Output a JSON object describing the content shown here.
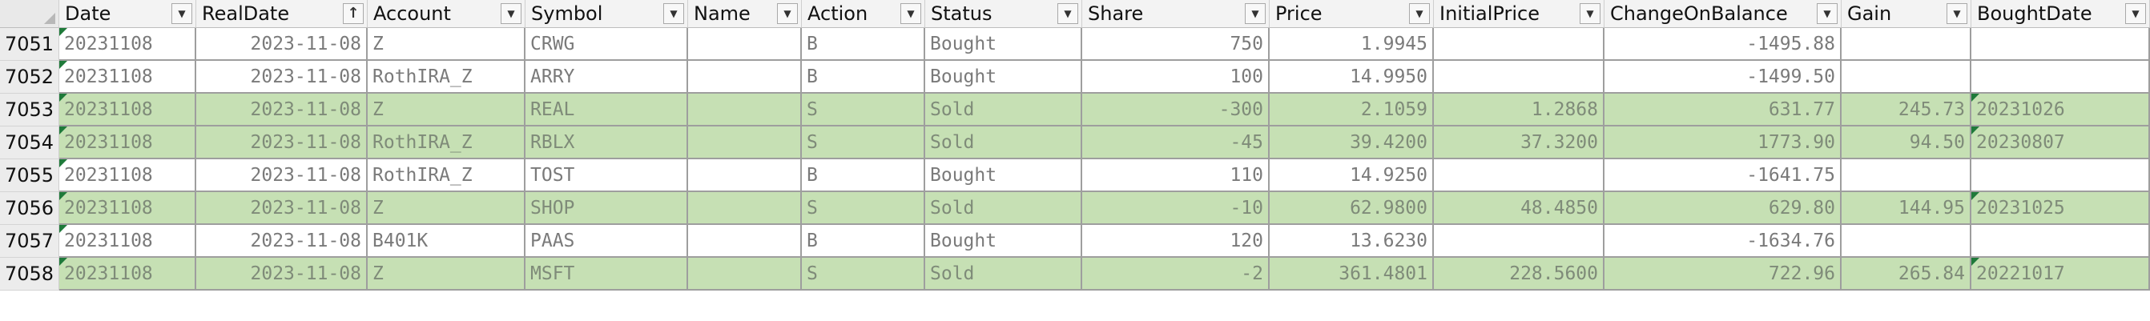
{
  "columns": [
    {
      "label": "Date",
      "align": "left"
    },
    {
      "label": "RealDate",
      "align": "right",
      "sorted": true
    },
    {
      "label": "Account",
      "align": "left"
    },
    {
      "label": "Symbol",
      "align": "left"
    },
    {
      "label": "Name",
      "align": "left"
    },
    {
      "label": "Action",
      "align": "left"
    },
    {
      "label": "Status",
      "align": "left"
    },
    {
      "label": "Share",
      "align": "right"
    },
    {
      "label": "Price",
      "align": "right"
    },
    {
      "label": "InitialPrice",
      "align": "right"
    },
    {
      "label": "ChangeOnBalance",
      "align": "right"
    },
    {
      "label": "Gain",
      "align": "right"
    },
    {
      "label": "BoughtDate",
      "align": "left"
    }
  ],
  "rows": [
    {
      "num": "7051",
      "sold": false,
      "cells": [
        "20231108",
        "2023-11-08",
        "Z",
        "CRWG",
        "",
        "B",
        "Bought",
        "750",
        "1.9945",
        "",
        "-1495.88",
        "",
        ""
      ],
      "flags": [
        true,
        false,
        false,
        false,
        false,
        false,
        false,
        false,
        false,
        false,
        false,
        false,
        false
      ]
    },
    {
      "num": "7052",
      "sold": false,
      "cells": [
        "20231108",
        "2023-11-08",
        "RothIRA_Z",
        "ARRY",
        "",
        "B",
        "Bought",
        "100",
        "14.9950",
        "",
        "-1499.50",
        "",
        ""
      ],
      "flags": [
        true,
        false,
        false,
        false,
        false,
        false,
        false,
        false,
        false,
        false,
        false,
        false,
        false
      ]
    },
    {
      "num": "7053",
      "sold": true,
      "cells": [
        "20231108",
        "2023-11-08",
        "Z",
        "REAL",
        "",
        "S",
        "Sold",
        "-300",
        "2.1059",
        "1.2868",
        "631.77",
        "245.73",
        "20231026"
      ],
      "flags": [
        true,
        false,
        false,
        false,
        false,
        false,
        false,
        false,
        false,
        false,
        false,
        false,
        true
      ]
    },
    {
      "num": "7054",
      "sold": true,
      "cells": [
        "20231108",
        "2023-11-08",
        "RothIRA_Z",
        "RBLX",
        "",
        "S",
        "Sold",
        "-45",
        "39.4200",
        "37.3200",
        "1773.90",
        "94.50",
        "20230807"
      ],
      "flags": [
        true,
        false,
        false,
        false,
        false,
        false,
        false,
        false,
        false,
        false,
        false,
        false,
        true
      ]
    },
    {
      "num": "7055",
      "sold": false,
      "cells": [
        "20231108",
        "2023-11-08",
        "RothIRA_Z",
        "TOST",
        "",
        "B",
        "Bought",
        "110",
        "14.9250",
        "",
        "-1641.75",
        "",
        ""
      ],
      "flags": [
        true,
        false,
        false,
        false,
        false,
        false,
        false,
        false,
        false,
        false,
        false,
        false,
        false
      ]
    },
    {
      "num": "7056",
      "sold": true,
      "cells": [
        "20231108",
        "2023-11-08",
        "Z",
        "SHOP",
        "",
        "S",
        "Sold",
        "-10",
        "62.9800",
        "48.4850",
        "629.80",
        "144.95",
        "20231025"
      ],
      "flags": [
        true,
        false,
        false,
        false,
        false,
        false,
        false,
        false,
        false,
        false,
        false,
        false,
        true
      ]
    },
    {
      "num": "7057",
      "sold": false,
      "cells": [
        "20231108",
        "2023-11-08",
        "B401K",
        "PAAS",
        "",
        "B",
        "Bought",
        "120",
        "13.6230",
        "",
        "-1634.76",
        "",
        ""
      ],
      "flags": [
        true,
        false,
        false,
        false,
        false,
        false,
        false,
        false,
        false,
        false,
        false,
        false,
        false
      ]
    },
    {
      "num": "7058",
      "sold": true,
      "cells": [
        "20231108",
        "2023-11-08",
        "Z",
        "MSFT",
        "",
        "S",
        "Sold",
        "-2",
        "361.4801",
        "228.5600",
        "722.96",
        "265.84",
        "20221017"
      ],
      "flags": [
        true,
        false,
        false,
        false,
        false,
        false,
        false,
        false,
        false,
        false,
        false,
        false,
        true
      ]
    }
  ],
  "colors": {
    "sold_fill": "#c6e0b4",
    "header_bg": "#f3f3f3",
    "row_header_bg": "#ececec",
    "flag": "#1f7a3a"
  }
}
